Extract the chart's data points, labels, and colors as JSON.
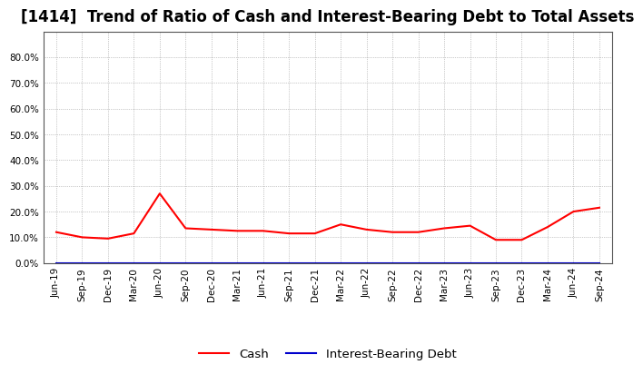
{
  "title": "[1414]  Trend of Ratio of Cash and Interest-Bearing Debt to Total Assets",
  "x_labels": [
    "Jun-19",
    "Sep-19",
    "Dec-19",
    "Mar-20",
    "Jun-20",
    "Sep-20",
    "Dec-20",
    "Mar-21",
    "Jun-21",
    "Sep-21",
    "Dec-21",
    "Mar-22",
    "Jun-22",
    "Sep-22",
    "Dec-22",
    "Mar-23",
    "Jun-23",
    "Sep-23",
    "Dec-23",
    "Mar-24",
    "Jun-24",
    "Sep-24"
  ],
  "cash_values": [
    12.0,
    10.0,
    9.5,
    11.5,
    27.0,
    13.5,
    13.0,
    12.5,
    12.5,
    11.5,
    11.5,
    15.0,
    13.0,
    12.0,
    12.0,
    13.5,
    14.5,
    9.0,
    9.0,
    14.0,
    20.0,
    21.5
  ],
  "debt_values": [
    0.0,
    0.0,
    0.0,
    0.0,
    0.0,
    0.0,
    0.0,
    0.0,
    0.0,
    0.0,
    0.0,
    0.0,
    0.0,
    0.0,
    0.0,
    0.0,
    0.0,
    0.0,
    0.0,
    0.0,
    0.0,
    0.0
  ],
  "cash_color": "#ff0000",
  "debt_color": "#0000cc",
  "background_color": "#ffffff",
  "grid_color": "#999999",
  "ylim": [
    0.0,
    90.0
  ],
  "yticks": [
    0.0,
    10.0,
    20.0,
    30.0,
    40.0,
    50.0,
    60.0,
    70.0,
    80.0
  ],
  "title_fontsize": 12,
  "tick_fontsize": 7.5,
  "legend_fontsize": 9.5,
  "line_width": 1.5
}
